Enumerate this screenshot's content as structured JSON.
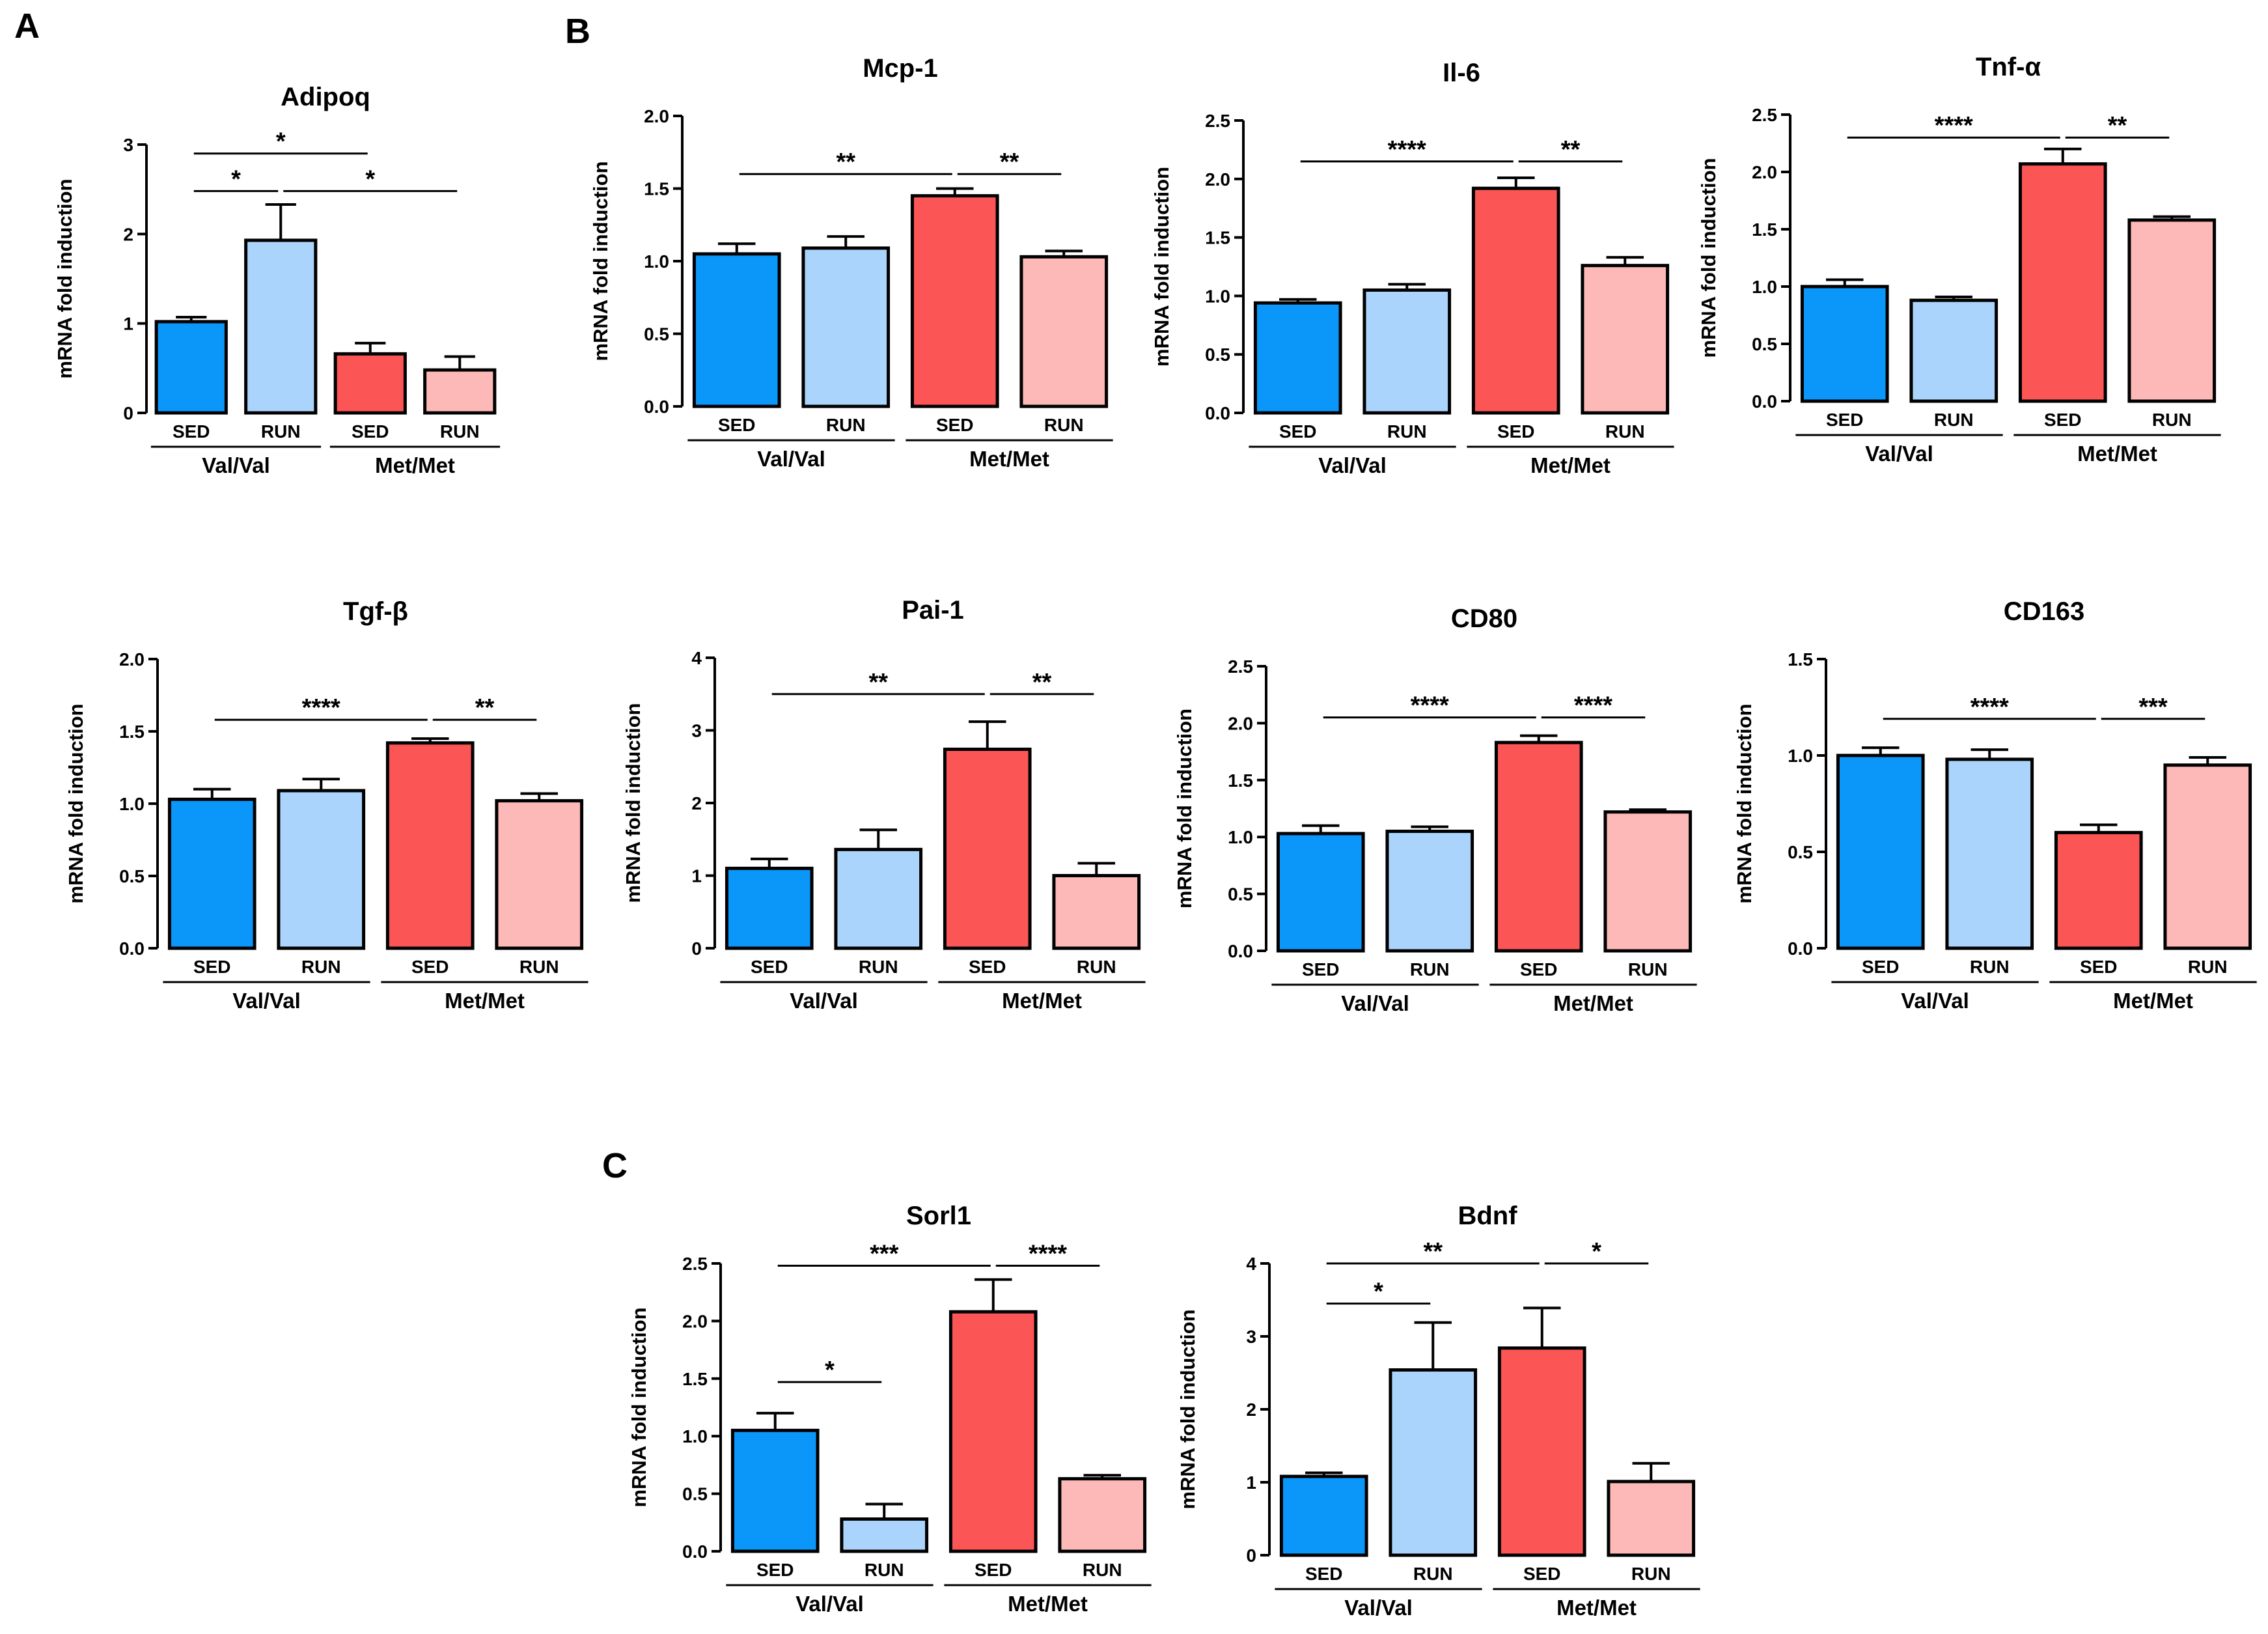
{
  "panel_labels": [
    "A",
    "B",
    "C"
  ],
  "colors": {
    "sed_valval": "#0b96fa",
    "run_valval": "#aad4fb",
    "sed_metmet": "#fb5555",
    "run_metmet": "#fdb8b8",
    "stroke": "#000000"
  },
  "chart_data": [
    {
      "type": "bar",
      "panel": "A",
      "title": "Adipoq",
      "ylabel": "mRNA fold induction",
      "ylim": [
        0,
        3
      ],
      "yticks": [
        0,
        1,
        2,
        3
      ],
      "ytick_labels": [
        "0",
        "1",
        "2",
        "3"
      ],
      "categories": [
        "SED",
        "RUN",
        "SED",
        "RUN"
      ],
      "groups": [
        "Val/Val",
        "Met/Met"
      ],
      "values": [
        1.02,
        1.93,
        0.66,
        0.48
      ],
      "errors": [
        0.05,
        0.4,
        0.12,
        0.15
      ],
      "significance": [
        {
          "from": 0,
          "to": 2,
          "y": 2.9,
          "label": "*"
        },
        {
          "from": 0,
          "to": 1,
          "y": 2.48,
          "label": "*"
        },
        {
          "from": 1,
          "to": 3,
          "y": 2.48,
          "label": "*"
        }
      ]
    },
    {
      "type": "bar",
      "panel": "B",
      "title": "Mcp-1",
      "ylabel": "mRNA fold induction",
      "ylim": [
        0,
        2
      ],
      "yticks": [
        0,
        0.5,
        1,
        1.5,
        2
      ],
      "ytick_labels": [
        "0.0",
        "0.5",
        "1.0",
        "1.5",
        "2.0"
      ],
      "categories": [
        "SED",
        "RUN",
        "SED",
        "RUN"
      ],
      "groups": [
        "Val/Val",
        "Met/Met"
      ],
      "values": [
        1.05,
        1.09,
        1.45,
        1.03
      ],
      "errors": [
        0.07,
        0.08,
        0.05,
        0.04
      ],
      "significance": [
        {
          "from": 0,
          "to": 2,
          "y": 1.6,
          "label": "**"
        },
        {
          "from": 2,
          "to": 3,
          "y": 1.6,
          "label": "**"
        }
      ]
    },
    {
      "type": "bar",
      "panel": "",
      "title": "Il-6",
      "ylabel": "mRNA fold induction",
      "ylim": [
        0,
        2.5
      ],
      "yticks": [
        0,
        0.5,
        1,
        1.5,
        2,
        2.5
      ],
      "ytick_labels": [
        "0.0",
        "0.5",
        "1.0",
        "1.5",
        "2.0",
        "2.5"
      ],
      "categories": [
        "SED",
        "RUN",
        "SED",
        "RUN"
      ],
      "groups": [
        "Val/Val",
        "Met/Met"
      ],
      "values": [
        0.94,
        1.05,
        1.92,
        1.26
      ],
      "errors": [
        0.03,
        0.05,
        0.09,
        0.07
      ],
      "significance": [
        {
          "from": 0,
          "to": 2,
          "y": 2.15,
          "label": "****"
        },
        {
          "from": 2,
          "to": 3,
          "y": 2.15,
          "label": "**"
        }
      ]
    },
    {
      "type": "bar",
      "panel": "",
      "title": "Tnf-α",
      "ylabel": "mRNA fold induction",
      "ylim": [
        0,
        2.5
      ],
      "yticks": [
        0,
        0.5,
        1,
        1.5,
        2,
        2.5
      ],
      "ytick_labels": [
        "0.0",
        "0.5",
        "1.0",
        "1.5",
        "2.0",
        "2.5"
      ],
      "categories": [
        "SED",
        "RUN",
        "SED",
        "RUN"
      ],
      "groups": [
        "Val/Val",
        "Met/Met"
      ],
      "values": [
        1.0,
        0.88,
        2.07,
        1.58
      ],
      "errors": [
        0.06,
        0.03,
        0.13,
        0.03
      ],
      "significance": [
        {
          "from": 0,
          "to": 2,
          "y": 2.3,
          "label": "****"
        },
        {
          "from": 2,
          "to": 3,
          "y": 2.3,
          "label": "**"
        }
      ]
    },
    {
      "type": "bar",
      "panel": "",
      "title": "Tgf-β",
      "ylabel": "mRNA fold induction",
      "ylim": [
        0,
        2
      ],
      "yticks": [
        0,
        0.5,
        1,
        1.5,
        2
      ],
      "ytick_labels": [
        "0.0",
        "0.5",
        "1.0",
        "1.5",
        "2.0"
      ],
      "categories": [
        "SED",
        "RUN",
        "SED",
        "RUN"
      ],
      "groups": [
        "Val/Val",
        "Met/Met"
      ],
      "values": [
        1.03,
        1.09,
        1.42,
        1.02
      ],
      "errors": [
        0.07,
        0.08,
        0.03,
        0.05
      ],
      "significance": [
        {
          "from": 0,
          "to": 2,
          "y": 1.58,
          "label": "****"
        },
        {
          "from": 2,
          "to": 3,
          "y": 1.58,
          "label": "**"
        }
      ]
    },
    {
      "type": "bar",
      "panel": "",
      "title": "Pai-1",
      "ylabel": "mRNA fold induction",
      "ylim": [
        0,
        4
      ],
      "yticks": [
        0,
        1,
        2,
        3,
        4
      ],
      "ytick_labels": [
        "0",
        "1",
        "2",
        "3",
        "4"
      ],
      "categories": [
        "SED",
        "RUN",
        "SED",
        "RUN"
      ],
      "groups": [
        "Val/Val",
        "Met/Met"
      ],
      "values": [
        1.1,
        1.36,
        2.74,
        1.0
      ],
      "errors": [
        0.13,
        0.27,
        0.38,
        0.17
      ],
      "significance": [
        {
          "from": 0,
          "to": 2,
          "y": 3.5,
          "label": "**"
        },
        {
          "from": 2,
          "to": 3,
          "y": 3.5,
          "label": "**"
        }
      ]
    },
    {
      "type": "bar",
      "panel": "",
      "title": "CD80",
      "ylabel": "mRNA fold induction",
      "ylim": [
        0,
        2.5
      ],
      "yticks": [
        0,
        0.5,
        1,
        1.5,
        2,
        2.5
      ],
      "ytick_labels": [
        "0.0",
        "0.5",
        "1.0",
        "1.5",
        "2.0",
        "2.5"
      ],
      "categories": [
        "SED",
        "RUN",
        "SED",
        "RUN"
      ],
      "groups": [
        "Val/Val",
        "Met/Met"
      ],
      "values": [
        1.03,
        1.05,
        1.83,
        1.22
      ],
      "errors": [
        0.07,
        0.04,
        0.06,
        0.02
      ],
      "significance": [
        {
          "from": 0,
          "to": 2,
          "y": 2.05,
          "label": "****"
        },
        {
          "from": 2,
          "to": 3,
          "y": 2.05,
          "label": "****"
        }
      ]
    },
    {
      "type": "bar",
      "panel": "",
      "title": "CD163",
      "ylabel": "mRNA fold induction",
      "ylim": [
        0,
        1.5
      ],
      "yticks": [
        0,
        0.5,
        1,
        1.5
      ],
      "ytick_labels": [
        "0.0",
        "0.5",
        "1.0",
        "1.5"
      ],
      "categories": [
        "SED",
        "RUN",
        "SED",
        "RUN"
      ],
      "groups": [
        "Val/Val",
        "Met/Met"
      ],
      "values": [
        1.0,
        0.98,
        0.6,
        0.95
      ],
      "errors": [
        0.04,
        0.05,
        0.04,
        0.04
      ],
      "significance": [
        {
          "from": 0,
          "to": 2,
          "y": 1.19,
          "label": "****"
        },
        {
          "from": 2,
          "to": 3,
          "y": 1.19,
          "label": "***"
        }
      ]
    },
    {
      "type": "bar",
      "panel": "C",
      "title": "Sorl1",
      "ylabel": "mRNA fold induction",
      "ylim": [
        0,
        2.5
      ],
      "yticks": [
        0,
        0.5,
        1,
        1.5,
        2,
        2.5
      ],
      "ytick_labels": [
        "0.0",
        "0.5",
        "1.0",
        "1.5",
        "2.0",
        "2.5"
      ],
      "categories": [
        "SED",
        "RUN",
        "SED",
        "RUN"
      ],
      "groups": [
        "Val/Val",
        "Met/Met"
      ],
      "values": [
        1.05,
        0.28,
        2.08,
        0.63
      ],
      "errors": [
        0.15,
        0.13,
        0.28,
        0.03
      ],
      "significance": [
        {
          "from": 0,
          "to": 1,
          "y": 1.47,
          "label": "*"
        },
        {
          "from": 0,
          "to": 2,
          "y": 2.48,
          "label": "***"
        },
        {
          "from": 2,
          "to": 3,
          "y": 2.48,
          "label": "****"
        }
      ]
    },
    {
      "type": "bar",
      "panel": "",
      "title": "Bdnf",
      "ylabel": "mRNA fold induction",
      "ylim": [
        0,
        4
      ],
      "yticks": [
        0,
        1,
        2,
        3,
        4
      ],
      "ytick_labels": [
        "0",
        "1",
        "2",
        "3",
        "4"
      ],
      "categories": [
        "SED",
        "RUN",
        "SED",
        "RUN"
      ],
      "groups": [
        "Val/Val",
        "Met/Met"
      ],
      "values": [
        1.08,
        2.54,
        2.84,
        1.01
      ],
      "errors": [
        0.05,
        0.65,
        0.55,
        0.25
      ],
      "significance": [
        {
          "from": 0,
          "to": 1,
          "y": 3.45,
          "label": "*"
        },
        {
          "from": 0,
          "to": 2,
          "y": 4.0,
          "label": "**"
        },
        {
          "from": 2,
          "to": 3,
          "y": 4.0,
          "label": "*"
        }
      ]
    }
  ]
}
